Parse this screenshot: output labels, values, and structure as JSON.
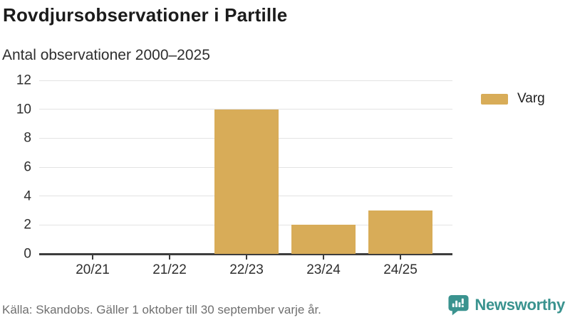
{
  "chart_data": {
    "type": "bar",
    "title": "Rovdjursobservationer i Partille",
    "subtitle": "Antal observationer 2000–2025",
    "categories": [
      "20/21",
      "21/22",
      "22/23",
      "23/24",
      "24/25"
    ],
    "series": [
      {
        "name": "Varg",
        "values": [
          0,
          0,
          10,
          2,
          3
        ]
      }
    ],
    "xlabel": "",
    "ylabel": "",
    "ylim": [
      0,
      12
    ],
    "yticks": [
      0,
      2,
      4,
      6,
      8,
      10,
      12
    ],
    "grid": true,
    "legend_position": "right",
    "bar_color": "#D8AC58"
  },
  "legend": {
    "items": [
      {
        "label": "Varg",
        "swatch_color": "#D8AC58"
      }
    ]
  },
  "footer": {
    "source": "Källa: Skandobs. Gäller 1 oktober till 30 september varje år.",
    "brand": "Newsworthy"
  },
  "icons": {
    "logo": "newsworthy-speech-bubble-bar-chart-icon"
  },
  "colors": {
    "bar": "#D8AC58",
    "brand_teal": "#3A938F",
    "gridline": "#E3E3E3",
    "axis": "#3D3D3D",
    "title_text": "#1B1B1B",
    "muted_text": "#6F6F6F"
  }
}
